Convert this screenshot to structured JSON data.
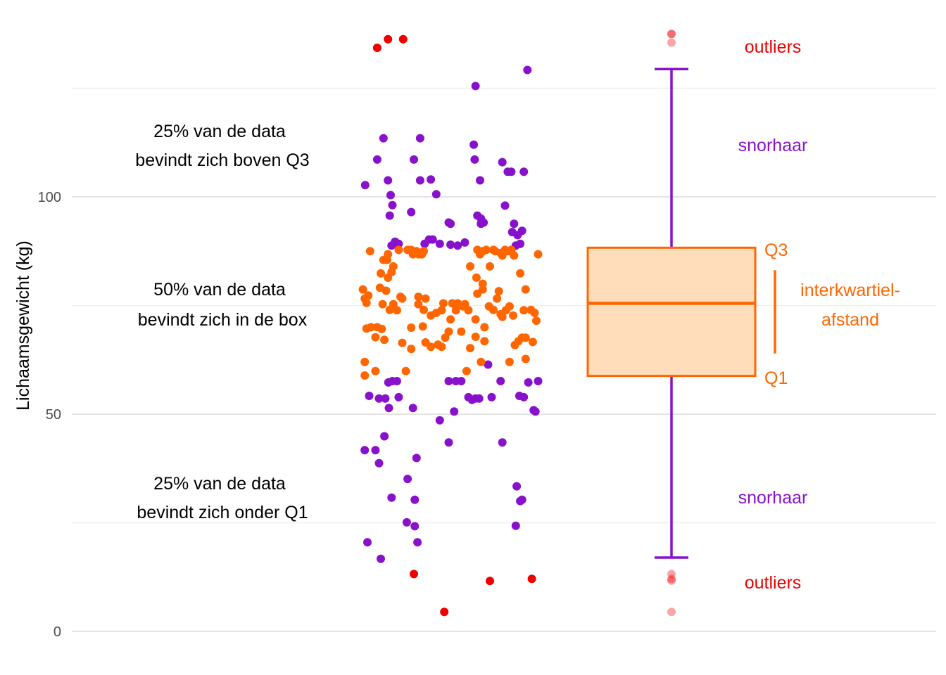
{
  "chart_data": {
    "type": "scatter",
    "title": "",
    "xlabel": "",
    "ylabel": "Lichaamsgewicht (kg)",
    "ylim": [
      0,
      140
    ],
    "yticks": [
      0,
      50,
      100
    ],
    "grid": true,
    "colors": {
      "outlier": "#ee0000",
      "whisker": "#8811cc",
      "box": "#ff6600",
      "box_fill": "#ffddbb",
      "text": "#000000",
      "grid": "#e5e5e5"
    },
    "boxplot": {
      "q1": 58.8,
      "median": 75.5,
      "q3": 88.3,
      "whisker_low": 17,
      "whisker_high": 129.4,
      "outliers": [
        137.5,
        135.5,
        137.5,
        13.2,
        11.7,
        12.1,
        4.5
      ]
    },
    "points": {
      "purple": [
        [
          0.085,
          102.7
        ],
        [
          0.22,
          108.6
        ],
        [
          0.29,
          113.5
        ],
        [
          0.7,
          113.5
        ],
        [
          0.63,
          108.6
        ],
        [
          0.34,
          103.8
        ],
        [
          0.37,
          100.4
        ],
        [
          0.39,
          98.1
        ],
        [
          0.36,
          95.7
        ],
        [
          0.6,
          96.5
        ],
        [
          0.42,
          89.7
        ],
        [
          0.38,
          88.8
        ],
        [
          0.46,
          89.2
        ],
        [
          0.75,
          89.2
        ],
        [
          0.8,
          90.2
        ],
        [
          0.84,
          90.2
        ],
        [
          0.92,
          89.2
        ],
        [
          0.7,
          103.8
        ],
        [
          0.82,
          104.0
        ],
        [
          0.88,
          100.6
        ],
        [
          1.02,
          94.1
        ],
        [
          1.04,
          93.8
        ],
        [
          1.3,
          112.0
        ],
        [
          1.31,
          108.6
        ],
        [
          1.37,
          103.8
        ],
        [
          1.34,
          95.7
        ],
        [
          1.38,
          95.0
        ],
        [
          1.38,
          93.8
        ],
        [
          1.41,
          94.1
        ],
        [
          1.65,
          98.0
        ],
        [
          1.75,
          93.8
        ],
        [
          1.73,
          91.9
        ],
        [
          1.79,
          91.2
        ],
        [
          1.62,
          108.0
        ],
        [
          1.68,
          105.8
        ],
        [
          1.72,
          105.8
        ],
        [
          1.86,
          105.8
        ],
        [
          1.84,
          92.2
        ],
        [
          1.77,
          88.8
        ],
        [
          1.82,
          89.2
        ],
        [
          1.32,
          125.5
        ],
        [
          1.9,
          129.2
        ],
        [
          1.12,
          88.8
        ],
        [
          1.2,
          89.5
        ],
        [
          1.04,
          89.0
        ],
        [
          0.13,
          54.2
        ],
        [
          0.2,
          41.7
        ],
        [
          0.24,
          53.6
        ],
        [
          0.31,
          53.6
        ],
        [
          0.345,
          57.3
        ],
        [
          0.39,
          57.6
        ],
        [
          0.44,
          57.6
        ],
        [
          0.46,
          53.9
        ],
        [
          0.35,
          51.4
        ],
        [
          0.08,
          41.7
        ],
        [
          0.3,
          44.9
        ],
        [
          0.24,
          38.7
        ],
        [
          0.62,
          51.4
        ],
        [
          0.56,
          35.1
        ],
        [
          0.38,
          30.8
        ],
        [
          0.66,
          39.9
        ],
        [
          0.64,
          30.3
        ],
        [
          0.55,
          25.1
        ],
        [
          0.64,
          24.2
        ],
        [
          0.67,
          20.5
        ],
        [
          0.11,
          20.5
        ],
        [
          0.26,
          16.7
        ],
        [
          0.92,
          48.6
        ],
        [
          1.08,
          50.6
        ],
        [
          1.02,
          57.6
        ],
        [
          1.1,
          57.6
        ],
        [
          1.16,
          57.6
        ],
        [
          1.24,
          53.9
        ],
        [
          1.28,
          53.3
        ],
        [
          1.32,
          53.6
        ],
        [
          1.36,
          53.6
        ],
        [
          1.5,
          53.9
        ],
        [
          1.6,
          57.6
        ],
        [
          1.46,
          61.4
        ],
        [
          1.02,
          43.5
        ],
        [
          1.62,
          43.5
        ],
        [
          1.78,
          33.4
        ],
        [
          1.82,
          30.0
        ],
        [
          1.84,
          30.3
        ],
        [
          1.77,
          24.3
        ],
        [
          1.81,
          54.2
        ],
        [
          1.86,
          53.9
        ],
        [
          1.91,
          57.3
        ],
        [
          1.97,
          50.9
        ],
        [
          1.99,
          50.6
        ],
        [
          2.02,
          57.6
        ]
      ],
      "orange": [
        [
          0.06,
          78.7
        ],
        [
          0.08,
          76.6
        ],
        [
          0.1,
          75.6
        ],
        [
          0.12,
          77.3
        ],
        [
          0.1,
          69.7
        ],
        [
          0.15,
          70.0
        ],
        [
          0.2,
          67.7
        ],
        [
          0.22,
          70.0
        ],
        [
          0.27,
          69.6
        ],
        [
          0.3,
          67.1
        ],
        [
          0.25,
          79.1
        ],
        [
          0.28,
          75.3
        ],
        [
          0.32,
          78.4
        ],
        [
          0.36,
          74.0
        ],
        [
          0.4,
          75.3
        ],
        [
          0.44,
          73.9
        ],
        [
          0.48,
          77.0
        ],
        [
          0.5,
          76.6
        ],
        [
          0.26,
          82.4
        ],
        [
          0.34,
          81.4
        ],
        [
          0.38,
          82.7
        ],
        [
          0.4,
          84.0
        ],
        [
          0.46,
          87.8
        ],
        [
          0.14,
          87.5
        ],
        [
          0.29,
          85.5
        ],
        [
          0.33,
          85.5
        ],
        [
          0.34,
          86.8
        ],
        [
          0.56,
          87.8
        ],
        [
          0.6,
          87.8
        ],
        [
          0.62,
          86.8
        ],
        [
          0.66,
          87.5
        ],
        [
          0.68,
          86.8
        ],
        [
          0.72,
          86.8
        ],
        [
          0.74,
          87.5
        ],
        [
          0.5,
          66.4
        ],
        [
          0.08,
          62.0
        ],
        [
          0.08,
          58.9
        ],
        [
          0.2,
          59.9
        ],
        [
          0.54,
          59.9
        ],
        [
          0.6,
          65.0
        ],
        [
          0.6,
          69.9
        ],
        [
          0.68,
          75.3
        ],
        [
          0.68,
          77.0
        ],
        [
          0.76,
          76.6
        ],
        [
          0.74,
          74.0
        ],
        [
          0.82,
          72.7
        ],
        [
          0.88,
          73.3
        ],
        [
          0.94,
          73.9
        ],
        [
          0.96,
          75.5
        ],
        [
          0.73,
          70.2
        ],
        [
          0.76,
          66.5
        ],
        [
          0.82,
          65.5
        ],
        [
          0.9,
          66.0
        ],
        [
          0.94,
          65.5
        ],
        [
          0.98,
          67.6
        ],
        [
          1.02,
          69.0
        ],
        [
          1.04,
          71.8
        ],
        [
          1.06,
          75.5
        ],
        [
          1.1,
          73.9
        ],
        [
          1.12,
          75.5
        ],
        [
          1.18,
          74.8
        ],
        [
          1.2,
          75.3
        ],
        [
          1.24,
          73.9
        ],
        [
          1.26,
          65.2
        ],
        [
          1.32,
          67.8
        ],
        [
          1.32,
          71.8
        ],
        [
          1.34,
          77.7
        ],
        [
          1.4,
          80.0
        ],
        [
          1.42,
          70.0
        ],
        [
          1.47,
          74.8
        ],
        [
          1.52,
          74.0
        ],
        [
          1.56,
          76.6
        ],
        [
          1.6,
          73.0
        ],
        [
          1.58,
          78.3
        ],
        [
          1.62,
          72.4
        ],
        [
          1.66,
          73.9
        ],
        [
          1.7,
          74.8
        ],
        [
          1.74,
          72.7
        ],
        [
          1.76,
          65.9
        ],
        [
          1.8,
          66.8
        ],
        [
          1.84,
          67.6
        ],
        [
          1.88,
          67.6
        ],
        [
          1.86,
          73.9
        ],
        [
          1.94,
          74.0
        ],
        [
          1.98,
          73.3
        ],
        [
          1.96,
          66.6
        ],
        [
          2.0,
          71.5
        ],
        [
          1.42,
          66.8
        ],
        [
          1.38,
          62.0
        ],
        [
          1.7,
          62.0
        ],
        [
          1.88,
          62.7
        ],
        [
          1.26,
          84.0
        ],
        [
          1.33,
          81.4
        ],
        [
          1.4,
          78.7
        ],
        [
          1.48,
          84.0
        ],
        [
          1.34,
          87.8
        ],
        [
          1.37,
          86.8
        ],
        [
          1.4,
          87.5
        ],
        [
          1.44,
          87.8
        ],
        [
          1.52,
          87.8
        ],
        [
          1.54,
          87.5
        ],
        [
          1.6,
          87.1
        ],
        [
          1.62,
          86.5
        ],
        [
          1.65,
          87.8
        ],
        [
          1.68,
          87.5
        ],
        [
          1.72,
          87.8
        ],
        [
          1.75,
          86.5
        ],
        [
          1.88,
          78.7
        ],
        [
          1.82,
          82.4
        ],
        [
          2.02,
          86.8
        ],
        [
          1.22,
          59.9
        ],
        [
          1.16,
          69.0
        ]
      ],
      "red": [
        [
          0.22,
          134.3
        ],
        [
          0.34,
          136.3
        ],
        [
          0.51,
          136.3
        ],
        [
          0.63,
          13.2
        ],
        [
          0.97,
          4.5
        ],
        [
          1.48,
          11.6
        ],
        [
          1.95,
          12.1
        ]
      ]
    },
    "annotations": {
      "left_top_line1": "25% van de data",
      "left_top_line2": "bevindt zich boven Q3",
      "left_mid_line1": "50% van de data",
      "left_mid_line2": "bevindt zich in de box",
      "left_bot_line1": "25% van de data",
      "left_bot_line2": "bevindt zich onder Q1",
      "outliers_top": "outliers",
      "outliers_bottom": "outliers",
      "whisker_top": "snorhaar",
      "whisker_bottom": "snorhaar",
      "q3": "Q3",
      "q1": "Q1",
      "iqr_line1": "interkwartiel-",
      "iqr_line2": "afstand"
    }
  }
}
